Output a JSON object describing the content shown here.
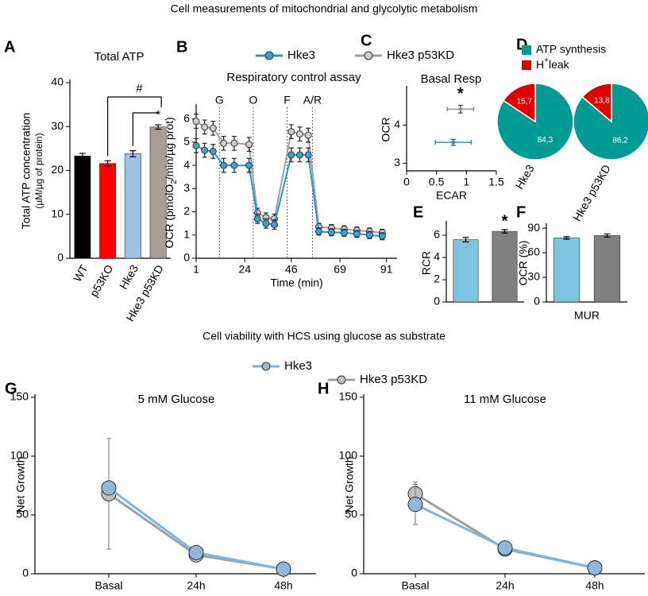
{
  "header": "Cell measurements of mitochondrial and glycolytic metabolism",
  "section_title": "Cell viability with HCS using glucose as substrate",
  "chart_data": [
    {
      "type": "bar",
      "panel": "A",
      "title": "Total ATP",
      "ylabel": "Total ATP concentration",
      "ylabel2": "(µM/µg of protein)",
      "categories": [
        "WT",
        "p53KO",
        "Hke3",
        "Hke3 p53KD"
      ],
      "values": [
        23.3,
        21.6,
        23.8,
        29.9
      ],
      "errors": [
        0.6,
        0.6,
        0.7,
        0.5
      ],
      "colors": [
        "#000000",
        "#ff0000",
        "#9dc3e6",
        "#a89c96"
      ],
      "ylim": [
        0,
        40
      ],
      "yticks": [
        0,
        10,
        20,
        30,
        40
      ],
      "annotations": [
        "#",
        "*"
      ]
    },
    {
      "type": "line",
      "panel": "B",
      "title": "Respiratory control assay",
      "ylabel": [
        "OCR (pmolO",
        "2",
        "/min/µg prot)"
      ],
      "xlabel": "Time (min)",
      "x": [
        1,
        5,
        9,
        14,
        19,
        26,
        30,
        34,
        38,
        46,
        50,
        54,
        59,
        65,
        71,
        77,
        83,
        89
      ],
      "series": [
        {
          "name": "Hke3",
          "color": "#2a94c9",
          "fill": "#3ba2d6",
          "values": [
            4.85,
            4.65,
            4.6,
            4.0,
            4.0,
            4.0,
            1.7,
            1.5,
            1.45,
            4.45,
            4.45,
            4.45,
            1.15,
            1.12,
            1.1,
            1.05,
            1.0,
            0.95
          ],
          "errors": [
            0.3,
            0.3,
            0.3,
            0.3,
            0.3,
            0.3,
            0.2,
            0.2,
            0.2,
            0.3,
            0.3,
            0.3,
            0.15,
            0.15,
            0.15,
            0.15,
            0.15,
            0.15
          ]
        },
        {
          "name": "Hke3 p53KD",
          "color": "#a0a0a0",
          "fill": "#cccccc",
          "values": [
            5.9,
            5.65,
            5.6,
            4.95,
            4.95,
            4.9,
            1.95,
            1.75,
            1.7,
            5.45,
            5.35,
            5.3,
            1.35,
            1.3,
            1.25,
            1.2,
            1.15,
            1.1
          ],
          "errors": [
            0.3,
            0.3,
            0.3,
            0.3,
            0.3,
            0.3,
            0.2,
            0.2,
            0.2,
            0.3,
            0.3,
            0.3,
            0.15,
            0.15,
            0.15,
            0.15,
            0.15,
            0.15
          ]
        }
      ],
      "events": [
        {
          "x": 12,
          "label": "G"
        },
        {
          "x": 28,
          "label": "O"
        },
        {
          "x": 44,
          "label": "F"
        },
        {
          "x": 56,
          "label": "A/R"
        }
      ],
      "xlim": [
        1,
        96
      ],
      "xticks": [
        1,
        24,
        46,
        69,
        91
      ],
      "ylim": [
        0,
        6.5
      ],
      "yticks": [
        0,
        1,
        2,
        3,
        4,
        5,
        6
      ]
    },
    {
      "type": "scatter",
      "panel": "C",
      "title": "Basal Resp",
      "xlabel": "ECAR",
      "ylabel": "OCR",
      "series": [
        {
          "color": "#2a94c9",
          "x": [
            0.78
          ],
          "values": [
            3.55
          ],
          "xerr": [
            0.3
          ],
          "yerr": [
            0.08
          ]
        },
        {
          "color": "#909090",
          "x": [
            0.9
          ],
          "values": [
            4.42
          ],
          "xerr": [
            0.22
          ],
          "yerr": [
            0.1
          ]
        }
      ],
      "xlim": [
        0,
        1.5
      ],
      "xticks": [
        0,
        0.5,
        1,
        1.5
      ],
      "ylim": [
        2.8,
        4.95
      ],
      "yticks": [
        3,
        4
      ],
      "annotations": [
        "*"
      ]
    },
    {
      "type": "pie",
      "panel": "D",
      "categories": [
        "ATP synthesis",
        [
          "H",
          "+",
          "leak"
        ]
      ],
      "colors": [
        "#009b95",
        "#e00000"
      ],
      "pies": [
        {
          "label": "Hke3",
          "values": [
            84.3,
            15.7
          ],
          "value_labels": [
            "84,3",
            "15,7"
          ]
        },
        {
          "label": "Hke3 p53KD",
          "values": [
            86.2,
            13.8
          ],
          "value_labels": [
            "86,2",
            "13,8"
          ]
        }
      ]
    },
    {
      "type": "bar",
      "panel": "E",
      "ylabel": "RCR",
      "values": [
        5.6,
        6.35
      ],
      "errors": [
        0.2,
        0.15
      ],
      "colors": [
        "#7ec3e0",
        "#808080"
      ],
      "ylim": [
        0,
        7
      ],
      "yticks": [
        0,
        2,
        4,
        6
      ],
      "annotations": [
        "*"
      ]
    },
    {
      "type": "bar",
      "panel": "F",
      "ylabel": "OCR (%)",
      "xlabel": "MUR",
      "values": [
        78,
        81
      ],
      "errors": [
        1.5,
        2
      ],
      "colors": [
        "#7ec3e0",
        "#808080"
      ],
      "ylim": [
        0,
        92
      ],
      "yticks": [
        0,
        30,
        60,
        90
      ]
    },
    {
      "type": "line",
      "panel": "G",
      "title": "5 mM Glucose",
      "ylabel": "Net Growth",
      "categories": [
        "Basal",
        "24h",
        "48h"
      ],
      "series": [
        {
          "name": "Hke3",
          "color": "#7fb6df",
          "fill": "#8fb8dc",
          "values": [
            73,
            18,
            4
          ],
          "errors": [
            3,
            2,
            1
          ]
        },
        {
          "name": "Hke3 p53KD",
          "color": "#a0a0a0",
          "fill": "#c0c0c0",
          "values": [
            68,
            16,
            4
          ],
          "errors": [
            47,
            2,
            1
          ]
        }
      ],
      "ylim": [
        0,
        150
      ],
      "yticks": [
        0,
        50,
        100,
        150
      ]
    },
    {
      "type": "line",
      "panel": "H",
      "title": "11 mM Glucose",
      "ylabel": "Net Growth",
      "categories": [
        "Basal",
        "24h",
        "48h"
      ],
      "series": [
        {
          "name": "Hke3",
          "color": "#7fb6df",
          "fill": "#8fb8dc",
          "values": [
            59,
            22,
            5
          ],
          "errors": [
            17,
            1,
            1
          ]
        },
        {
          "name": "Hke3 p53KD",
          "color": "#a0a0a0",
          "fill": "#c0c0c0",
          "values": [
            68,
            21,
            5
          ],
          "errors": [
            10,
            1,
            1
          ]
        }
      ],
      "ylim": [
        0,
        150
      ],
      "yticks": [
        0,
        50,
        100,
        150
      ]
    }
  ]
}
